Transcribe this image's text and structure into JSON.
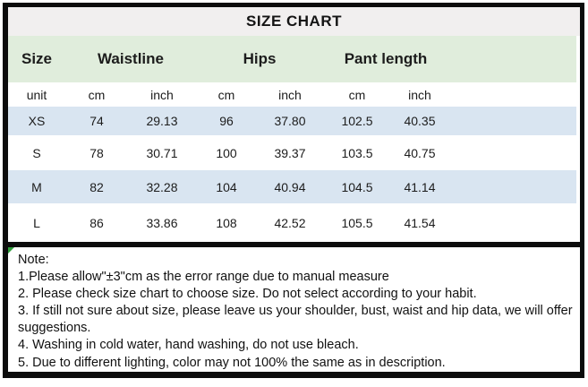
{
  "title": "SIZE CHART",
  "colors": {
    "title_bg": "#f1efef",
    "header_green": "#e0eddc",
    "row_blue": "#d9e5f1",
    "row_white": "#ffffff",
    "frame_border": "#0c0c0c",
    "corner_marker_green": "#2e9e3a"
  },
  "table": {
    "column_groups": [
      {
        "label": "Size"
      },
      {
        "label": "Waistline"
      },
      {
        "label": "Hips"
      },
      {
        "label": "Pant length"
      }
    ],
    "unit_row": [
      "unit",
      "cm",
      "inch",
      "cm",
      "inch",
      "cm",
      "inch"
    ],
    "rows": [
      {
        "size": "XS",
        "cells": [
          "74",
          "29.13",
          "96",
          "37.80",
          "102.5",
          "40.35"
        ]
      },
      {
        "size": "S",
        "cells": [
          "78",
          "30.71",
          "100",
          "39.37",
          "103.5",
          "40.75"
        ]
      },
      {
        "size": "M",
        "cells": [
          "82",
          "32.28",
          "104",
          "40.94",
          "104.5",
          "41.14"
        ]
      },
      {
        "size": "L",
        "cells": [
          "86",
          "33.86",
          "108",
          "42.52",
          "105.5",
          "41.54"
        ]
      }
    ]
  },
  "notes": {
    "lines": [
      "Note:",
      "1.Please allow\"±3\"cm as the error range due to manual measure",
      "2. Please check size chart to choose size. Do not select according to your habit.",
      "3. If still not sure about size, please leave us your shoulder, bust, waist and hip data, we will offer",
      "suggestions.",
      "4. Washing in cold water, hand washing, do not use bleach.",
      "5. Due to different lighting, color may not 100% the same as in description."
    ]
  }
}
